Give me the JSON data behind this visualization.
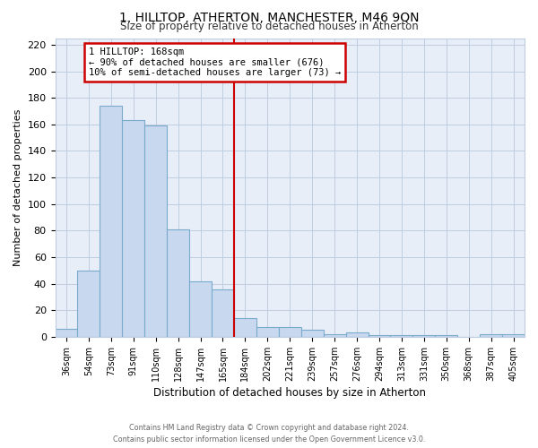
{
  "title": "1, HILLTOP, ATHERTON, MANCHESTER, M46 9QN",
  "subtitle": "Size of property relative to detached houses in Atherton",
  "xlabel": "Distribution of detached houses by size in Atherton",
  "ylabel": "Number of detached properties",
  "bar_labels": [
    "36sqm",
    "54sqm",
    "73sqm",
    "91sqm",
    "110sqm",
    "128sqm",
    "147sqm",
    "165sqm",
    "184sqm",
    "202sqm",
    "221sqm",
    "239sqm",
    "257sqm",
    "276sqm",
    "294sqm",
    "313sqm",
    "331sqm",
    "350sqm",
    "368sqm",
    "387sqm",
    "405sqm"
  ],
  "bar_values": [
    6,
    50,
    174,
    163,
    159,
    81,
    42,
    36,
    14,
    7,
    7,
    5,
    2,
    3,
    1,
    1,
    1,
    1,
    0,
    2,
    2
  ],
  "bar_color": "#c8d8ee",
  "bar_edge_color": "#7aaacc",
  "property_line_x": 7.5,
  "property_line_label": "1 HILLTOP: 168sqm",
  "annotation_line1": "← 90% of detached houses are smaller (676)",
  "annotation_line2": "10% of semi-detached houses are larger (73) →",
  "annotation_box_color": "#ffffff",
  "annotation_box_edge_color": "#cc0000",
  "vline_color": "#cc0000",
  "ylim": [
    0,
    225
  ],
  "yticks": [
    0,
    20,
    40,
    60,
    80,
    100,
    120,
    140,
    160,
    180,
    200,
    220
  ],
  "footer1": "Contains HM Land Registry data © Crown copyright and database right 2024.",
  "footer2": "Contains public sector information licensed under the Open Government Licence v3.0.",
  "bg_color": "#ffffff",
  "plot_bg_color": "#e8eef8",
  "grid_color": "#c0cce0"
}
